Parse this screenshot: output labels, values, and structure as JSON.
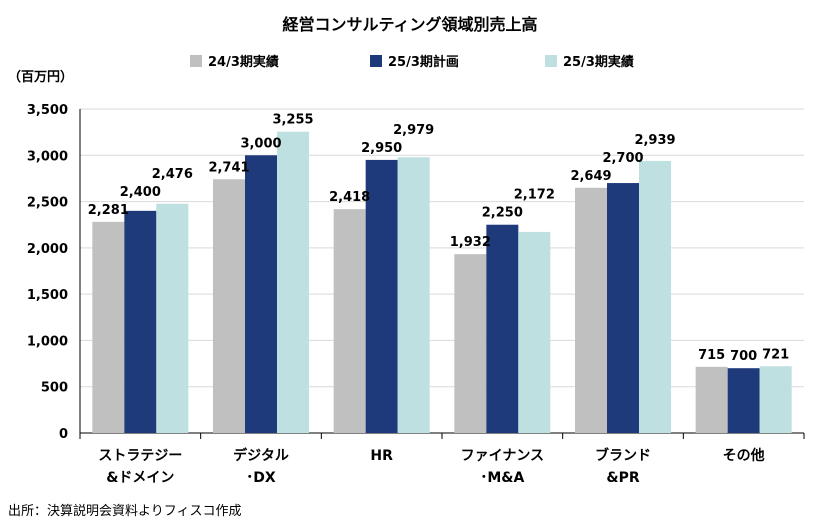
{
  "chart_data": {
    "type": "bar",
    "title": "経営コンサルティング領域別売上高",
    "ylabel": "（百万円）",
    "ylim": [
      0,
      3500
    ],
    "yticks": [
      0,
      500,
      1000,
      1500,
      2000,
      2500,
      3000,
      3500
    ],
    "ytick_labels": [
      "0",
      "500",
      "1,000",
      "1,500",
      "2,000",
      "2,500",
      "3,000",
      "3,500"
    ],
    "grid": true,
    "legend_position": "top",
    "categories": [
      [
        "ストラテジー",
        "&ドメイン"
      ],
      [
        "デジタル",
        "･DX"
      ],
      [
        "HR"
      ],
      [
        "ファイナンス",
        "･M&A"
      ],
      [
        "ブランド",
        "&PR"
      ],
      [
        "その他"
      ]
    ],
    "series": [
      {
        "name": "24/3期実績",
        "color": "#c0c0c0",
        "values": [
          2281,
          2741,
          2418,
          1932,
          2649,
          715
        ]
      },
      {
        "name": "25/3期計画",
        "color": "#1f3a7a",
        "values": [
          2400,
          3000,
          2950,
          2250,
          2700,
          700
        ]
      },
      {
        "name": "25/3期実績",
        "color": "#bfe0e0",
        "values": [
          2476,
          3255,
          2979,
          2172,
          2939,
          721
        ]
      }
    ],
    "data_labels": [
      [
        "2,281",
        "2,741",
        "2,418",
        "1,932",
        "2,649",
        "715"
      ],
      [
        "2,400",
        "3,000",
        "2,950",
        "2,250",
        "2,700",
        "700"
      ],
      [
        "2,476",
        "3,255",
        "2,979",
        "2,172",
        "2,939",
        "721"
      ]
    ],
    "source_note": "出所：決算説明会資料よりフィスコ作成"
  }
}
